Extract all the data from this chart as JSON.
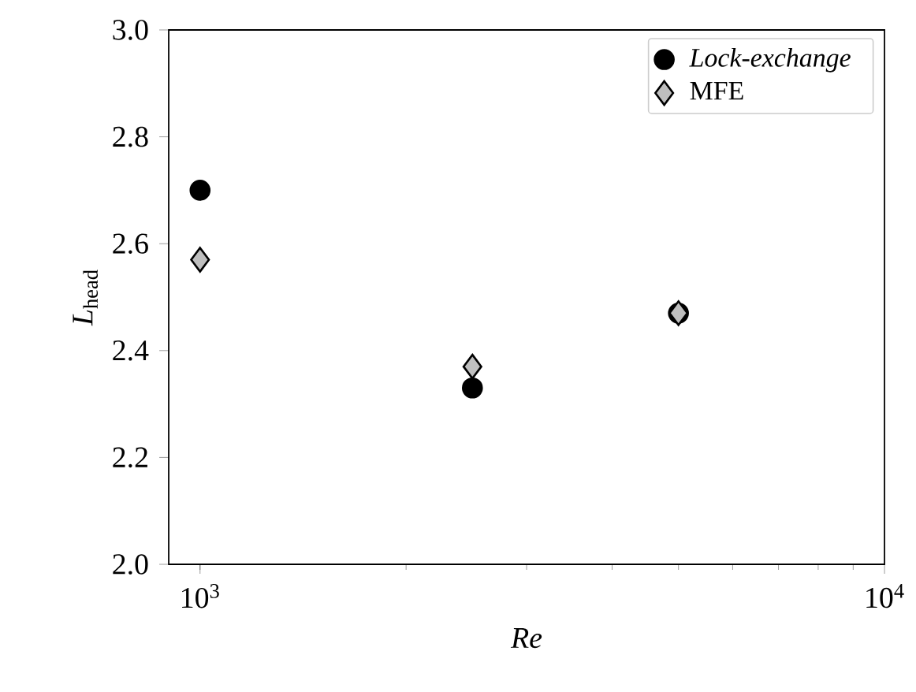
{
  "chart_data": {
    "type": "scatter",
    "xlabel": "Re",
    "ylabel": "*L*$_{head}$",
    "log": "x",
    "xlim": [
      900,
      10000
    ],
    "ylim": [
      2.0,
      3.0
    ],
    "xticks": [
      {
        "value": 1000,
        "label": "10$^{3}$"
      },
      {
        "value": 10000,
        "label": "10$^{4}$"
      }
    ],
    "yticks": [
      {
        "value": 2.0,
        "label": "2.0"
      },
      2.2,
      2.4,
      2.6,
      2.8,
      {
        "value": 3.0,
        "label": "3.0"
      }
    ],
    "legend": "top right",
    "grid": false,
    "series": [
      {
        "name": "Lock-exchange",
        "color": "#000000",
        "marker": "circle",
        "x": [
          1000,
          2500,
          5000
        ],
        "values": [
          2.7,
          2.33,
          2.47
        ]
      },
      {
        "name": "MFE",
        "color": "#bfbfbf",
        "marker": "diamond",
        "x": [
          1000,
          2500,
          5000
        ],
        "values": [
          2.57,
          2.37,
          2.47
        ]
      }
    ]
  }
}
